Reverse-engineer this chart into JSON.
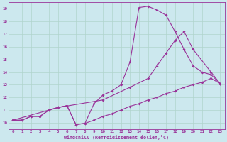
{
  "bg_color": "#cce8ee",
  "grid_color": "#b0d4cc",
  "line_color": "#993399",
  "marker": "D",
  "markersize": 2.0,
  "linewidth": 0.8,
  "xlim": [
    -0.5,
    23.5
  ],
  "ylim": [
    9.5,
    19.5
  ],
  "xticks": [
    0,
    1,
    2,
    3,
    4,
    5,
    6,
    7,
    8,
    9,
    10,
    11,
    12,
    13,
    14,
    15,
    16,
    17,
    18,
    19,
    20,
    21,
    22,
    23
  ],
  "yticks": [
    10,
    11,
    12,
    13,
    14,
    15,
    16,
    17,
    18,
    19
  ],
  "xlabel": "Windchill (Refroidissement éolien,°C)",
  "line1_x": [
    0,
    1,
    2,
    3,
    4,
    5,
    6,
    7,
    8,
    9,
    10,
    11,
    12,
    13,
    14,
    15,
    16,
    17,
    18,
    19,
    20,
    21,
    22,
    23
  ],
  "line1_y": [
    10.2,
    10.2,
    10.5,
    10.5,
    11.0,
    11.2,
    11.35,
    9.85,
    9.95,
    10.2,
    10.5,
    10.7,
    11.0,
    11.3,
    11.5,
    11.8,
    12.0,
    12.3,
    12.5,
    12.8,
    13.0,
    13.2,
    13.5,
    13.1
  ],
  "line2_x": [
    0,
    1,
    2,
    3,
    4,
    5,
    6,
    7,
    8,
    9,
    10,
    11,
    12,
    13,
    14,
    15,
    16,
    17,
    18,
    19,
    20,
    21,
    22,
    23
  ],
  "line2_y": [
    10.2,
    10.2,
    10.5,
    10.5,
    11.0,
    11.2,
    11.35,
    9.85,
    9.95,
    11.5,
    12.2,
    12.5,
    13.0,
    14.8,
    19.1,
    19.2,
    18.9,
    18.5,
    17.2,
    15.8,
    14.5,
    14.0,
    13.8,
    13.1
  ],
  "line3_x": [
    0,
    5,
    10,
    13,
    15,
    16,
    17,
    18,
    19,
    20,
    22,
    23
  ],
  "line3_y": [
    10.2,
    11.2,
    11.8,
    12.8,
    13.5,
    14.5,
    15.5,
    16.5,
    17.2,
    15.8,
    14.0,
    13.1
  ]
}
